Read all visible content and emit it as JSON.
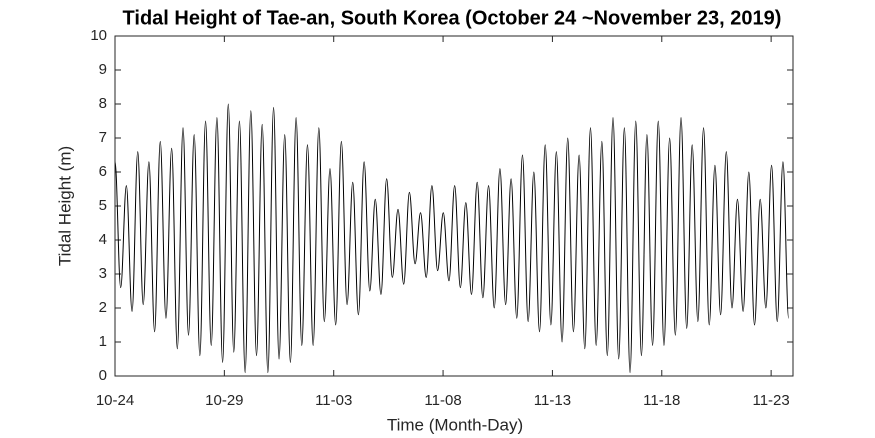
{
  "chart_data": {
    "type": "line",
    "title": "Tidal Height of Tae-an, South Korea (October 24 ~November 23, 2019)",
    "x_label": "Time (Month-Day)",
    "y_label": "Tidal Height (m)",
    "xlim": [
      0,
      31
    ],
    "ylim": [
      0,
      10
    ],
    "xticks": [
      {
        "value": 0,
        "label": "10-24"
      },
      {
        "value": 5,
        "label": "10-29"
      },
      {
        "value": 10,
        "label": "11-03"
      },
      {
        "value": 15,
        "label": "11-08"
      },
      {
        "value": 20,
        "label": "11-13"
      },
      {
        "value": 25,
        "label": "11-18"
      },
      {
        "value": 30,
        "label": "11-23"
      }
    ],
    "yticks": [
      0,
      1,
      2,
      3,
      4,
      5,
      6,
      7,
      8,
      9,
      10
    ],
    "grid": false,
    "series": [
      {
        "color": "#000000",
        "x": [
          0,
          0.26,
          0.52,
          0.78,
          1.04,
          1.29,
          1.55,
          1.81,
          2.07,
          2.33,
          2.59,
          2.85,
          3.11,
          3.36,
          3.62,
          3.88,
          4.14,
          4.4,
          4.66,
          4.92,
          5.18,
          5.43,
          5.69,
          5.95,
          6.21,
          6.47,
          6.73,
          6.99,
          7.25,
          7.5,
          7.76,
          8.02,
          8.28,
          8.54,
          8.8,
          9.06,
          9.32,
          9.57,
          9.83,
          10.09,
          10.35,
          10.61,
          10.87,
          11.13,
          11.39,
          11.65,
          11.9,
          12.16,
          12.42,
          12.68,
          12.94,
          13.2,
          13.46,
          13.72,
          13.97,
          14.23,
          14.49,
          14.75,
          15.01,
          15.27,
          15.53,
          15.79,
          16.04,
          16.3,
          16.56,
          16.82,
          17.08,
          17.34,
          17.6,
          17.86,
          18.11,
          18.37,
          18.63,
          18.89,
          19.15,
          19.41,
          19.67,
          19.93,
          20.18,
          20.44,
          20.7,
          20.96,
          21.22,
          21.48,
          21.74,
          22.0,
          22.26,
          22.51,
          22.77,
          23.03,
          23.29,
          23.55,
          23.81,
          24.07,
          24.32,
          24.58,
          24.84,
          25.1,
          25.36,
          25.62,
          25.88,
          26.14,
          26.39,
          26.65,
          26.91,
          27.17,
          27.43,
          27.69,
          27.95,
          28.21,
          28.46,
          28.72,
          28.98,
          29.24,
          29.5,
          29.76,
          30.02,
          30.28,
          30.54,
          30.8
        ],
        "values": [
          6.3,
          2.6,
          5.6,
          1.9,
          6.6,
          2.1,
          6.3,
          1.3,
          6.9,
          1.7,
          6.7,
          0.8,
          7.3,
          1.2,
          7.1,
          0.6,
          7.5,
          0.9,
          7.6,
          0.4,
          8.0,
          0.7,
          7.5,
          0.1,
          7.8,
          0.6,
          7.4,
          0.1,
          7.9,
          0.5,
          7.1,
          0.4,
          7.6,
          0.9,
          6.8,
          0.9,
          7.3,
          1.6,
          6.1,
          1.5,
          6.9,
          2.1,
          5.7,
          1.8,
          6.3,
          2.5,
          5.2,
          2.4,
          5.8,
          2.9,
          4.9,
          2.7,
          5.4,
          3.3,
          4.8,
          2.9,
          5.6,
          3.1,
          4.8,
          2.8,
          5.6,
          2.6,
          5.1,
          2.4,
          5.7,
          2.3,
          5.6,
          2.0,
          6.1,
          2.1,
          5.8,
          1.7,
          6.5,
          1.6,
          6.0,
          1.3,
          6.8,
          1.5,
          6.6,
          1.0,
          7.0,
          1.3,
          6.5,
          0.8,
          7.3,
          0.9,
          6.9,
          0.6,
          7.6,
          0.5,
          7.3,
          0.1,
          7.5,
          0.6,
          7.1,
          0.9,
          7.5,
          0.9,
          7.0,
          1.2,
          7.6,
          1.4,
          6.8,
          1.6,
          7.3,
          1.5,
          6.2,
          1.8,
          6.6,
          2.0,
          5.2,
          1.9,
          6.0,
          1.5,
          5.2,
          2.0,
          6.2,
          1.6,
          6.3,
          1.7
        ]
      }
    ]
  }
}
